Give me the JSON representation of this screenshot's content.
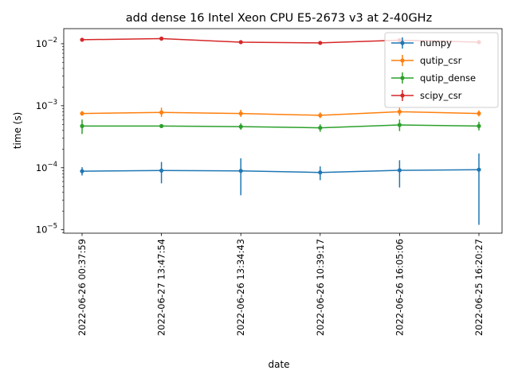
{
  "chart_data": {
    "type": "line",
    "title": "add dense 16 Intel Xeon CPU E5-2673 v3 at 2-40GHz",
    "xlabel": "date",
    "ylabel": "time (s)",
    "yscale": "log",
    "ylim": [
      8.8e-06,
      0.0175
    ],
    "yticks": [
      {
        "value": 0.01,
        "base": "10",
        "exp": "−2"
      },
      {
        "value": 0.001,
        "base": "10",
        "exp": "−3"
      },
      {
        "value": 0.0001,
        "base": "10",
        "exp": "−4"
      },
      {
        "value": 1e-05,
        "base": "10",
        "exp": "−5"
      }
    ],
    "categories": [
      "2022-06-26 00:37:59",
      "2022-06-27 13:47:54",
      "2022-06-26 13:34:43",
      "2022-06-26 10:39:17",
      "2022-06-26 16:05:06",
      "2022-06-25 16:20:27"
    ],
    "grid": false,
    "legend_position": "top-right",
    "series": [
      {
        "name": "numpy",
        "color": "#1f77b4",
        "values": [
          8.8e-05,
          9e-05,
          8.9e-05,
          8.4e-05,
          9.1e-05,
          9.3e-05
        ],
        "err_low": [
          7.5e-05,
          5.6e-05,
          3.6e-05,
          6.3e-05,
          4.8e-05,
          1.2e-05
        ],
        "err_high": [
          0.000102,
          0.000124,
          0.000142,
          0.000105,
          0.000132,
          0.00017
        ]
      },
      {
        "name": "qutip_csr",
        "color": "#ff7f0e",
        "values": [
          0.00075,
          0.00078,
          0.00075,
          0.0007,
          0.0008,
          0.00075
        ],
        "err_low": [
          0.00069,
          0.00066,
          0.00066,
          0.00063,
          0.00069,
          0.00067
        ],
        "err_high": [
          0.00082,
          0.00093,
          0.00086,
          0.00078,
          0.00093,
          0.00084
        ]
      },
      {
        "name": "qutip_dense",
        "color": "#2ca02c",
        "values": [
          0.00047,
          0.00047,
          0.00046,
          0.00044,
          0.00049,
          0.00047
        ],
        "err_low": [
          0.00035,
          0.00044,
          0.00041,
          0.00038,
          0.00039,
          0.0004
        ],
        "err_high": [
          0.0006,
          0.0005,
          0.00052,
          0.0005,
          0.0006,
          0.00055
        ]
      },
      {
        "name": "scipy_csr",
        "color": "#d62728",
        "values": [
          0.0116,
          0.0121,
          0.0106,
          0.0103,
          0.0114,
          0.0106
        ],
        "err_low": [
          0.0112,
          0.0117,
          0.0102,
          0.0099,
          0.011,
          0.0102
        ],
        "err_high": [
          0.012,
          0.0125,
          0.011,
          0.0107,
          0.0118,
          0.011
        ]
      }
    ]
  }
}
